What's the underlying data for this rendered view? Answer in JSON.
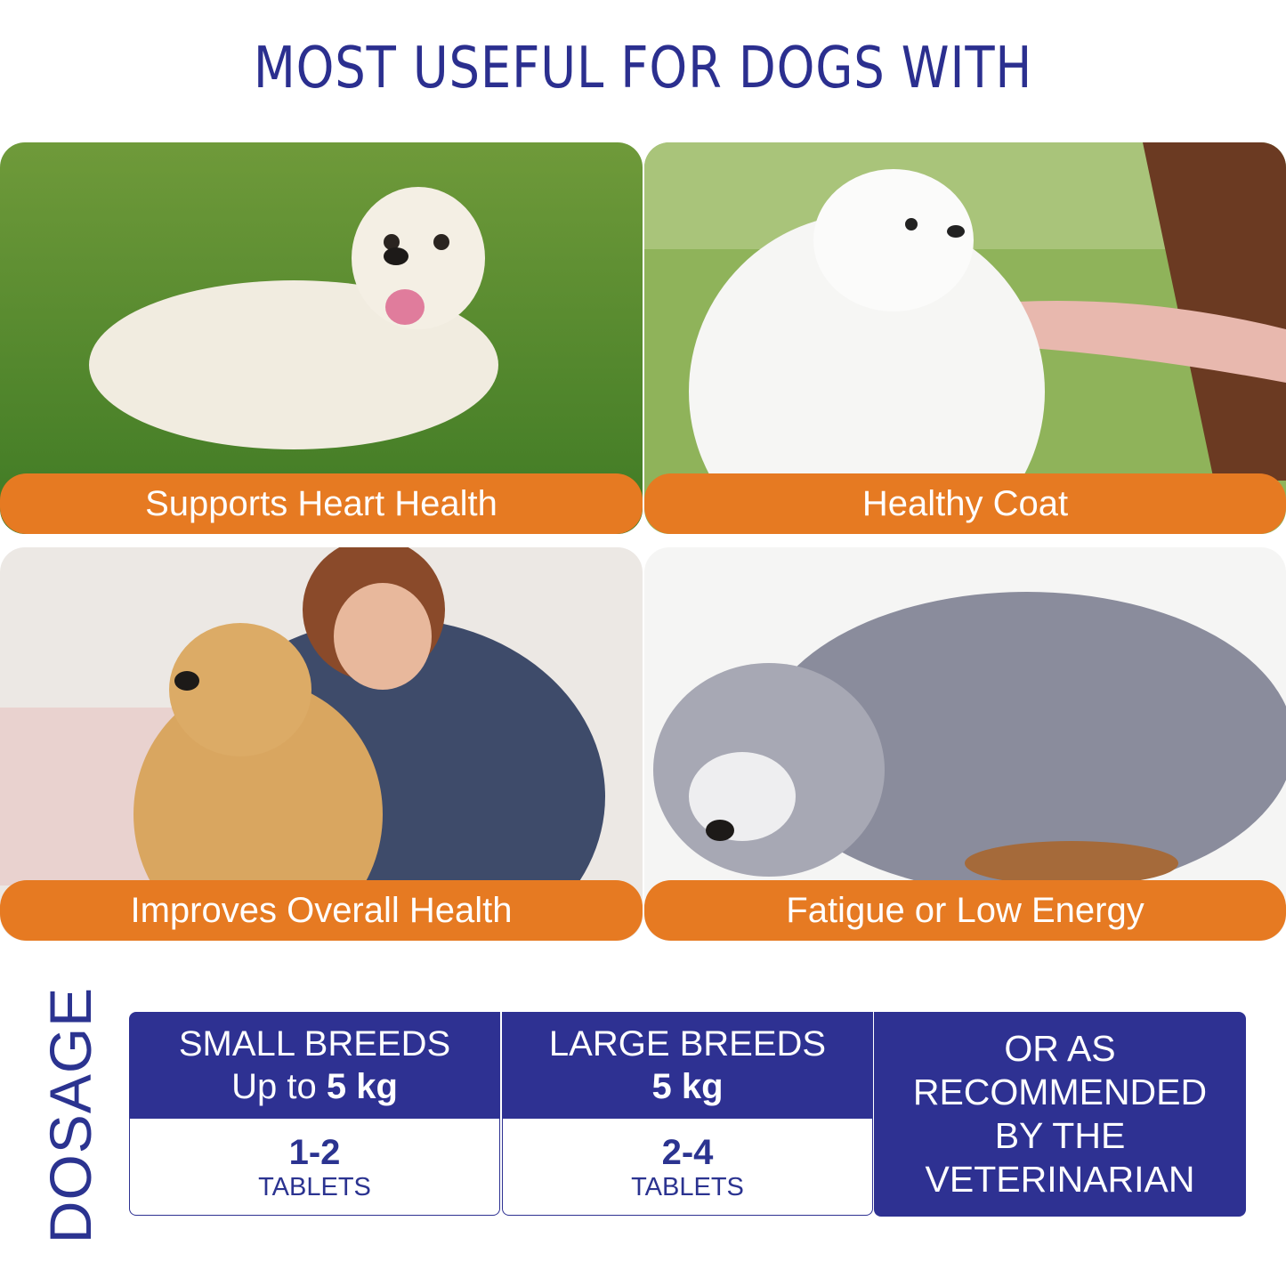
{
  "header": {
    "title": "MOST USEFUL FOR DOGS WITH"
  },
  "benefits": [
    {
      "label": "Supports Heart Health"
    },
    {
      "label": "Healthy Coat"
    },
    {
      "label": "Improves Overall Health"
    },
    {
      "label": "Fatigue or Low Energy"
    }
  ],
  "dosage": {
    "title": "DOSAGE",
    "columns": [
      {
        "heading": "SMALL BREEDS",
        "weight_prefix": "Up to",
        "weight": "5 kg",
        "amount": "1-2",
        "unit": "TABLETS"
      },
      {
        "heading": "LARGE BREEDS",
        "weight": "5 kg",
        "amount": "2-4",
        "unit": "TABLETS"
      }
    ],
    "note": "OR AS RECOMMENDED BY THE VETERINARIAN"
  }
}
